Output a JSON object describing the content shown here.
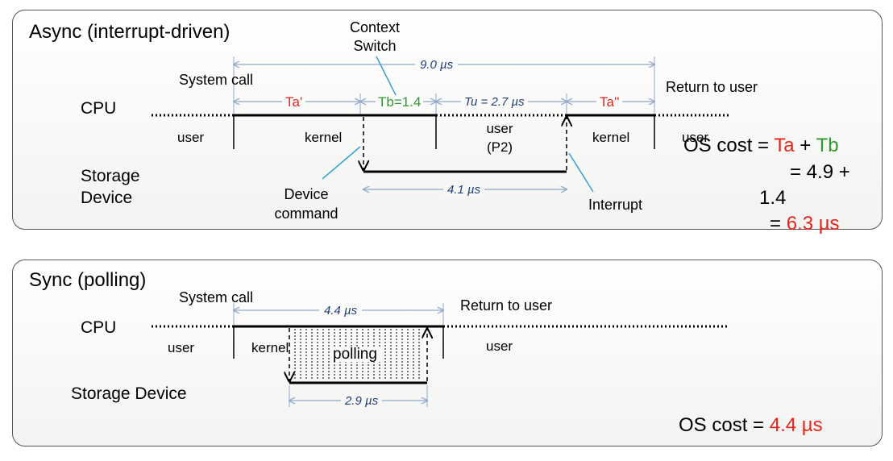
{
  "async": {
    "title": "Async (interrupt-driven)",
    "context_switch_line1": "Context",
    "context_switch_line2": "Switch",
    "system_call": "System call",
    "total_dim": "9.0 µs",
    "return_to_user": "Return to user",
    "cpu": "CPU",
    "ta": "Ta'",
    "tb": "Tb=1.4",
    "tu": "Tu = 2.7 µs",
    "ta2": "Ta''",
    "user_left": "user",
    "kernel_left": "kernel",
    "user_p2_line1": "user",
    "user_p2_line2": "(P2)",
    "kernel_right": "kernel",
    "user_right": "user",
    "storage_line1": "Storage",
    "storage_line2": "Device",
    "device_command_line1": "Device",
    "device_command_line2": "command",
    "device_dim": "4.1 µs",
    "interrupt": "Interrupt",
    "cost": {
      "prefix": "OS cost = ",
      "ta": "Ta",
      "plus": " + ",
      "tb": "Tb",
      "line2": "= 4.9 +",
      "line3": "1.4",
      "eq": "= ",
      "result": "6.3 µs"
    }
  },
  "sync": {
    "title": "Sync (polling)",
    "system_call": "System call",
    "total_dim": "4.4 µs",
    "return_to_user": "Return to user",
    "cpu": "CPU",
    "user_left": "user",
    "kernel": "kernel",
    "polling": "polling",
    "user_right": "user",
    "storage": "Storage Device",
    "device_dim": "2.9 µs",
    "cost": {
      "prefix": "OS cost = ",
      "result": "4.4 µs"
    }
  },
  "colors": {
    "red": "#e8231b",
    "green": "#2f9b2f",
    "dimension": "#1f3f7a",
    "callout": "#3aa0d0"
  }
}
